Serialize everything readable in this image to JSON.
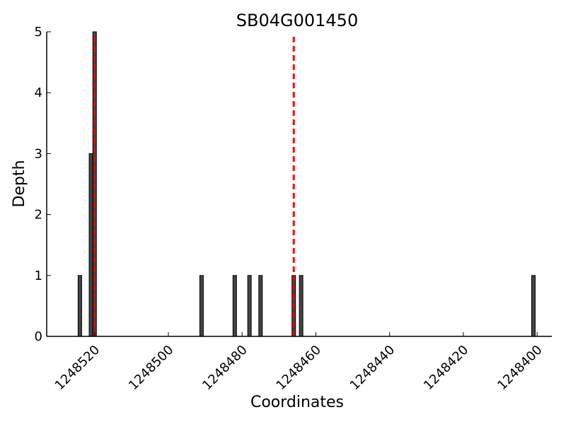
{
  "chart_data": {
    "type": "bar",
    "title": "SB04G001450",
    "xlabel": "Coordinates",
    "ylabel": "Depth",
    "x_reversed": true,
    "xlim": [
      1248533,
      1248396
    ],
    "ylim": [
      0,
      5
    ],
    "xticks": [
      1248520,
      1248500,
      1248480,
      1248460,
      1248440,
      1248420,
      1248400
    ],
    "yticks": [
      0,
      1,
      2,
      3,
      4,
      5
    ],
    "bar_color": "#444444",
    "bars": [
      {
        "x": 1248524,
        "y": 1
      },
      {
        "x": 1248521,
        "y": 3
      },
      {
        "x": 1248520,
        "y": 5
      },
      {
        "x": 1248491,
        "y": 1
      },
      {
        "x": 1248482,
        "y": 1
      },
      {
        "x": 1248478,
        "y": 1
      },
      {
        "x": 1248475,
        "y": 1
      },
      {
        "x": 1248466,
        "y": 1
      },
      {
        "x": 1248464,
        "y": 1
      },
      {
        "x": 1248401,
        "y": 1
      }
    ],
    "reference_lines": [
      {
        "x": 1248520,
        "color": "#ff0000",
        "style": "dashed"
      },
      {
        "x": 1248466,
        "color": "#ff0000",
        "style": "dashed"
      }
    ],
    "grid": false,
    "legend": "none"
  }
}
